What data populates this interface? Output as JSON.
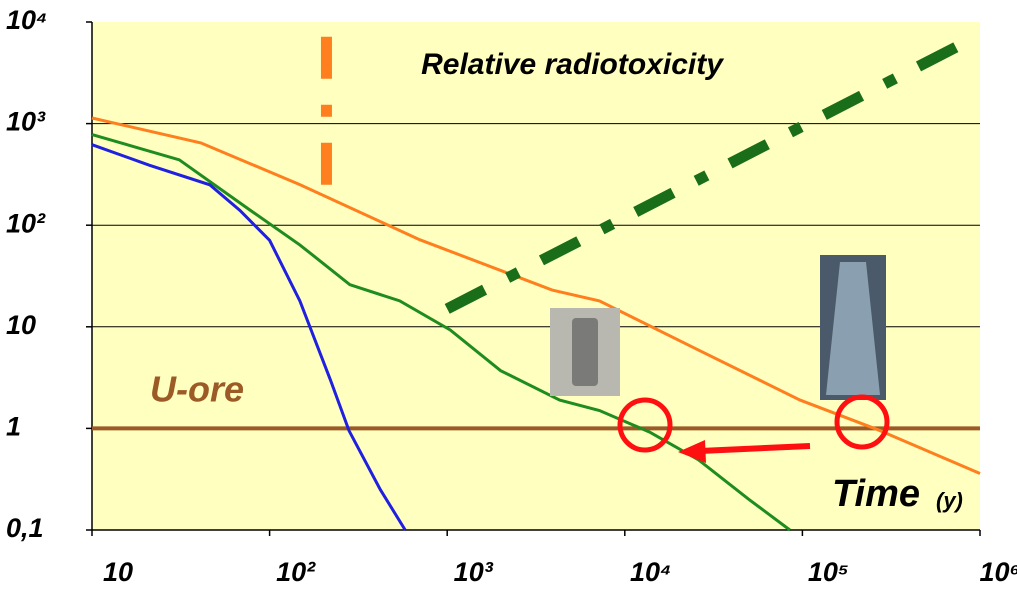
{
  "chart_data": {
    "type": "line",
    "title": "Relative radiotoxicity",
    "x_label": "Time",
    "x_label_unit": "(y)",
    "log_x": true,
    "log_y": true,
    "xlim": [
      10,
      1000000
    ],
    "ylim": [
      0.1,
      10000
    ],
    "xticks": [
      10,
      {
        "value": 100,
        "label": "10²"
      },
      {
        "value": 1000,
        "label": "10³"
      },
      {
        "value": 10000,
        "label": "10⁴"
      },
      {
        "value": 100000,
        "label": "10⁵"
      },
      {
        "value": 1000000,
        "label": "10⁶"
      }
    ],
    "yticks": [
      {
        "value": 0.1,
        "label": "0,1"
      },
      1,
      10,
      {
        "value": 100,
        "label": "10²"
      },
      {
        "value": 1000,
        "label": "10³"
      },
      {
        "value": 10000,
        "label": "10⁴"
      }
    ],
    "grid": true,
    "background": "#ffffc0",
    "reference_line": {
      "label": "U-ore",
      "value": 1,
      "color": "#9c5a26"
    },
    "series": [
      {
        "color": "#ff7f1e",
        "x": [
          10,
          41,
          148,
          700,
          3900,
          7200,
          26000,
          97000,
          270000,
          1000000
        ],
        "values": [
          1135,
          646,
          251,
          72,
          23,
          18,
          5.9,
          1.9,
          0.96,
          0.36
        ]
      },
      {
        "color": "#1e8c1e",
        "x": [
          10,
          31,
          78,
          148,
          283,
          540,
          1040,
          2000,
          4300,
          7200,
          13800,
          26000,
          50000,
          85000
        ],
        "values": [
          780,
          440,
          140,
          64,
          26,
          18,
          9.3,
          3.7,
          1.9,
          1.5,
          0.92,
          0.49,
          0.2,
          0.1
        ]
      },
      {
        "color": "#2020e0",
        "x": [
          10,
          21,
          46,
          68,
          100,
          148,
          220,
          280,
          420,
          580
        ],
        "values": [
          620,
          390,
          250,
          140,
          71,
          18,
          3,
          0.95,
          0.25,
          0.1
        ]
      },
      {
        "color": "#1a6e1a",
        "style": "dashdot",
        "x": [
          1000,
          870000
        ],
        "values": [
          15,
          6600
        ]
      },
      {
        "color": "#ff7f1e",
        "style": "dashdot",
        "x": [
          209,
          209
        ],
        "values": [
          250,
          10000
        ]
      }
    ]
  }
}
